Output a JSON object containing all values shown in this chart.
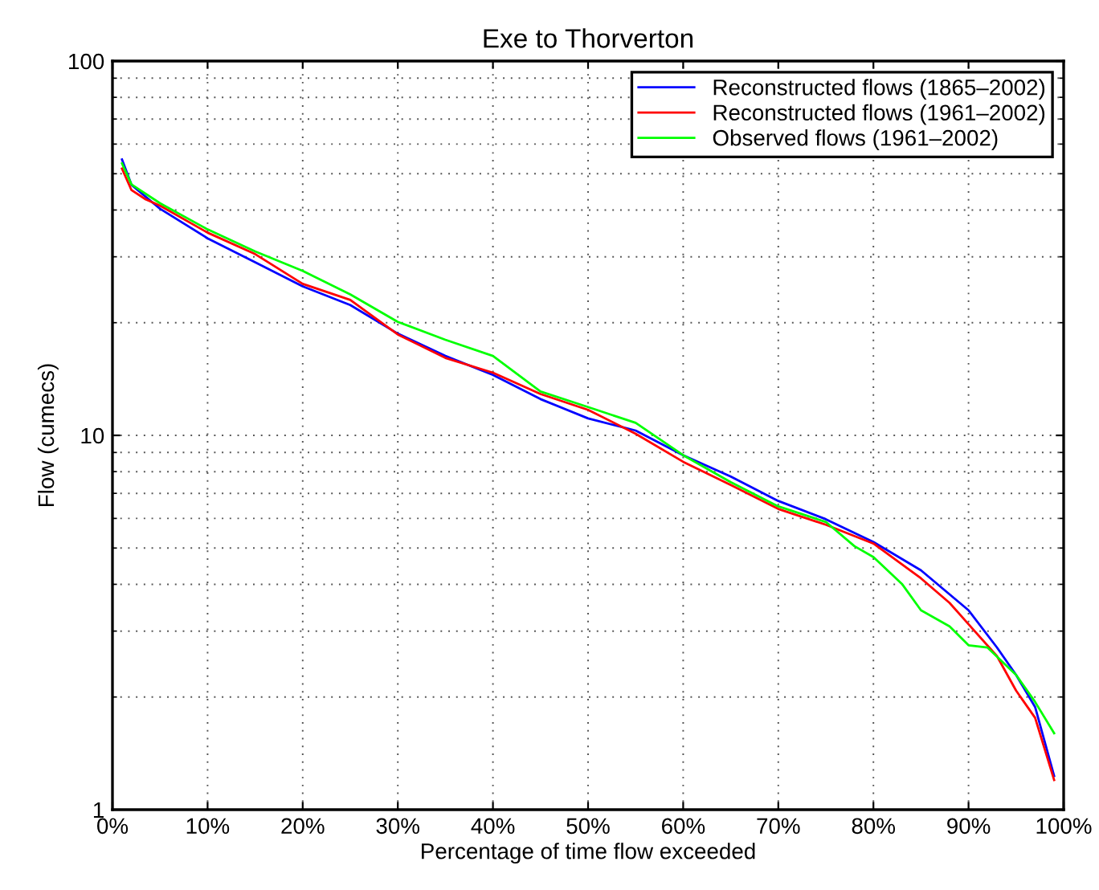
{
  "chart_data": {
    "type": "line",
    "title": "Exe to Thorverton",
    "xlabel": "Percentage of time flow exceeded",
    "ylabel": "Flow (cumecs)",
    "log": "y",
    "grid": true,
    "legend": "top right",
    "xlim": [
      0,
      100
    ],
    "xticks": [
      {
        "value": 0,
        "label": "0%"
      },
      {
        "value": 10,
        "label": "10%"
      },
      {
        "value": 20,
        "label": "20%"
      },
      {
        "value": 30,
        "label": "30%"
      },
      {
        "value": 40,
        "label": "40%"
      },
      {
        "value": 50,
        "label": "50%"
      },
      {
        "value": 60,
        "label": "60%"
      },
      {
        "value": 70,
        "label": "70%"
      },
      {
        "value": 80,
        "label": "80%"
      },
      {
        "value": 90,
        "label": "90%"
      },
      {
        "value": 100,
        "label": "100%"
      }
    ],
    "ylim": [
      1,
      100
    ],
    "yticks": [
      1,
      10,
      100
    ],
    "series": [
      {
        "name": "Reconstructed flows (1865–2002)",
        "color": "#0000ff",
        "x": [
          1,
          2,
          5,
          10,
          15,
          20,
          25,
          30,
          35,
          40,
          45,
          50,
          55,
          60,
          65,
          70,
          75,
          80,
          85,
          90,
          93,
          95,
          97,
          99
        ],
        "values": [
          54.6,
          46.7,
          40.3,
          33.6,
          29,
          25,
          22.3,
          18.7,
          16.3,
          14.5,
          12.5,
          11.1,
          10.3,
          8.85,
          7.76,
          6.68,
          5.97,
          5.19,
          4.36,
          3.41,
          2.71,
          2.29,
          1.88,
          1.23
        ]
      },
      {
        "name": "Reconstructed flows (1961–2002)",
        "color": "#ff0000",
        "x": [
          1,
          2,
          3.5,
          5,
          10,
          15,
          20,
          25,
          30,
          35,
          40,
          45,
          50,
          55,
          60,
          65,
          70,
          75,
          80,
          85,
          88,
          90,
          93,
          95,
          97,
          99
        ],
        "values": [
          51.6,
          45.2,
          42.7,
          41.1,
          34.8,
          30.5,
          25.4,
          23,
          18.6,
          16.1,
          14.7,
          12.9,
          11.7,
          10.1,
          8.5,
          7.37,
          6.36,
          5.77,
          5.14,
          4.15,
          3.57,
          3.13,
          2.57,
          2.08,
          1.76,
          1.2
        ]
      },
      {
        "name": "Observed flows (1961–2002)",
        "color": "#00ff00",
        "x": [
          1,
          2,
          5,
          10,
          15,
          20,
          25,
          30,
          35,
          40,
          45,
          50,
          55,
          60,
          65,
          70,
          75,
          78,
          80,
          83,
          85,
          88,
          90,
          92,
          95,
          97,
          99
        ],
        "values": [
          53.3,
          46.8,
          41.7,
          35.5,
          31,
          27.5,
          23.8,
          20.1,
          18,
          16.3,
          13.1,
          11.9,
          10.8,
          8.85,
          7.5,
          6.46,
          5.87,
          5.06,
          4.73,
          4.01,
          3.41,
          3.09,
          2.75,
          2.71,
          2.29,
          1.94,
          1.6
        ]
      }
    ]
  }
}
